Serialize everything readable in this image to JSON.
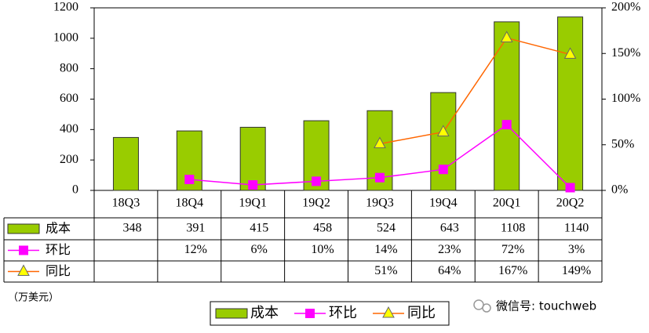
{
  "chart_data": {
    "type": "bar",
    "categories": [
      "18Q3",
      "18Q4",
      "19Q1",
      "19Q2",
      "19Q3",
      "19Q4",
      "20Q1",
      "20Q2"
    ],
    "series": [
      {
        "name": "成本",
        "type": "bar",
        "color": "#99cc00",
        "values": [
          348,
          391,
          415,
          458,
          524,
          643,
          1108,
          1140
        ]
      },
      {
        "name": "环比",
        "type": "line",
        "axis": "y2",
        "color": "#ff00ff",
        "marker": "square",
        "values": [
          null,
          12,
          6,
          10,
          14,
          23,
          72,
          3
        ],
        "value_labels": [
          null,
          "12%",
          "6%",
          "10%",
          "14%",
          "23%",
          "72%",
          "3%"
        ]
      },
      {
        "name": "同比",
        "type": "line",
        "axis": "y2",
        "color": "#ff6600",
        "marker_color": "#ffff00",
        "marker": "triangle",
        "values": [
          null,
          null,
          null,
          null,
          51,
          64,
          167,
          149
        ],
        "value_labels": [
          null,
          null,
          null,
          null,
          "51%",
          "64%",
          "167%",
          "149%"
        ]
      }
    ],
    "ylim": [
      0,
      1200
    ],
    "yticks": [
      0,
      200,
      400,
      600,
      800,
      1000,
      1200
    ],
    "y2lim": [
      0,
      200
    ],
    "y2ticks": [
      {
        "value": 0,
        "label": "0%"
      },
      {
        "value": 50,
        "label": "50%"
      },
      {
        "value": 100,
        "label": "100%"
      },
      {
        "value": 150,
        "label": "150%"
      },
      {
        "value": 200,
        "label": "200%"
      }
    ],
    "unit_label": "（万美元）",
    "watermark": "微信号: touchweb",
    "grid": false
  }
}
